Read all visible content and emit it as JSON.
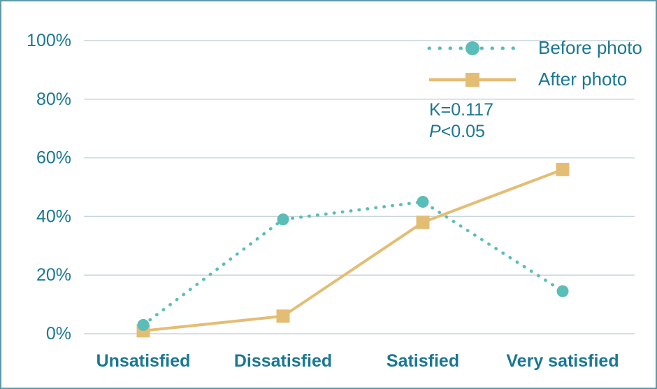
{
  "chart_data": {
    "type": "line",
    "categories": [
      "Unsatisfied",
      "Dissatisfied",
      "Satisfied",
      "Very satisfied"
    ],
    "series": [
      {
        "name": "Before photo",
        "values": [
          3,
          39,
          45,
          14.5
        ],
        "color": "#5bbdb8",
        "marker": "circle",
        "line_style": "dotted"
      },
      {
        "name": "After photo",
        "values": [
          1,
          6,
          38,
          56
        ],
        "color": "#e4bd74",
        "marker": "square",
        "line_style": "solid"
      }
    ],
    "y_ticks": [
      "0%",
      "20%",
      "40%",
      "60%",
      "80%",
      "100%"
    ],
    "y_tick_values": [
      0,
      20,
      40,
      60,
      80,
      100
    ],
    "ylim": [
      0,
      100
    ],
    "title": "",
    "xlabel": "",
    "ylabel": "",
    "grid": true,
    "legend_position": "top-right"
  },
  "annotation": {
    "k_stat": "K=0.117",
    "p_var": "P",
    "p_rest": "<0.05"
  },
  "colors": {
    "text": "#1a7793",
    "gridline": "#c7d6dc",
    "border": "#5f99a7",
    "background": "#ffffff"
  }
}
